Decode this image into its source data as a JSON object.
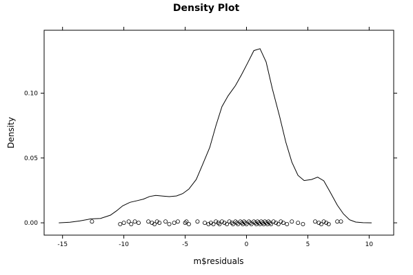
{
  "chart_data": {
    "type": "line",
    "title": "Density Plot",
    "xlabel": "m$residuals",
    "ylabel": "Density",
    "xlim": [
      -16.5,
      12.0
    ],
    "ylim": [
      -0.0095,
      0.1485
    ],
    "x_ticks": [
      -15,
      -10,
      -5,
      0,
      5,
      10
    ],
    "x_tick_labels": [
      "-15",
      "-10",
      "-5",
      "0",
      "5",
      "10"
    ],
    "y_ticks": [
      0.0,
      0.05,
      0.1
    ],
    "y_tick_labels": [
      "0.00",
      "0.05",
      "0.10"
    ],
    "grid": false,
    "legend": "none",
    "series": [
      {
        "style": "line",
        "x": [
          -15.3,
          -14.4,
          -13.6,
          -12.7,
          -11.9,
          -11.1,
          -10.6,
          -10.1,
          -9.5,
          -8.9,
          -8.4,
          -7.9,
          -7.4,
          -6.8,
          -6.3,
          -5.7,
          -5.2,
          -4.7,
          -4.1,
          -3.6,
          -3.0,
          -2.5,
          -2.0,
          -1.5,
          -0.9,
          -0.4,
          0.1,
          0.6,
          1.1,
          1.6,
          2.1,
          2.7,
          3.2,
          3.7,
          4.2,
          4.7,
          5.3,
          5.8,
          6.3,
          6.8,
          7.4,
          7.9,
          8.4,
          8.9,
          9.5,
          10.2
        ],
        "y": [
          0.0,
          0.0004,
          0.0014,
          0.003,
          0.0034,
          0.0059,
          0.0092,
          0.0131,
          0.0158,
          0.0171,
          0.0183,
          0.0203,
          0.0211,
          0.0206,
          0.0202,
          0.0207,
          0.0225,
          0.026,
          0.0334,
          0.0445,
          0.0581,
          0.0748,
          0.0896,
          0.0979,
          0.1058,
          0.1143,
          0.1234,
          0.1328,
          0.1343,
          0.124,
          0.1036,
          0.0819,
          0.0623,
          0.0468,
          0.0366,
          0.0326,
          0.0334,
          0.0352,
          0.0324,
          0.024,
          0.0136,
          0.0069,
          0.0023,
          0.0006,
          0.0001,
          0.0
        ]
      },
      {
        "style": "rug",
        "x": [
          -12.6,
          -10.3,
          -10.0,
          -9.6,
          -9.4,
          -9.1,
          -8.8,
          -8.0,
          -7.7,
          -7.5,
          -7.3,
          -7.1,
          -6.6,
          -6.3,
          -5.9,
          -5.6,
          -5.0,
          -4.9,
          -4.7,
          -4.0,
          -3.4,
          -3.1,
          -2.9,
          -2.7,
          -2.5,
          -2.3,
          -2.2,
          -2.0,
          -1.8,
          -1.6,
          -1.4,
          -1.2,
          -1.1,
          -0.9,
          -0.8,
          -0.7,
          -0.5,
          -0.4,
          -0.3,
          -0.2,
          -0.1,
          0.0,
          0.2,
          0.3,
          0.4,
          0.6,
          0.7,
          0.8,
          0.9,
          1.0,
          1.1,
          1.2,
          1.3,
          1.4,
          1.5,
          1.6,
          1.7,
          1.8,
          1.9,
          2.0,
          2.2,
          2.4,
          2.6,
          2.8,
          3.0,
          3.3,
          3.7,
          4.2,
          4.6,
          5.6,
          5.9,
          6.1,
          6.3,
          6.5,
          6.7,
          7.4,
          7.7
        ],
        "y": [
          0.001,
          -0.001,
          0.0,
          0.001,
          -0.001,
          0.001,
          0.0,
          0.001,
          0.0,
          -0.001,
          0.001,
          0.0,
          0.001,
          -0.001,
          0.0,
          0.001,
          0.0,
          0.001,
          -0.001,
          0.001,
          0.0,
          -0.001,
          0.0,
          -0.001,
          0.001,
          0.0,
          -0.001,
          0.001,
          0.0,
          -0.001,
          0.001,
          0.0,
          -0.001,
          0.001,
          0.0,
          -0.001,
          0.001,
          0.0,
          -0.001,
          0.001,
          0.0,
          -0.001,
          0.001,
          0.0,
          -0.001,
          0.001,
          0.0,
          -0.001,
          0.001,
          0.0,
          -0.001,
          0.001,
          0.0,
          -0.001,
          0.001,
          0.0,
          -0.001,
          0.001,
          0.0,
          -0.001,
          0.001,
          0.0,
          -0.001,
          0.001,
          0.0,
          -0.001,
          0.001,
          0.0,
          -0.001,
          0.001,
          0.0,
          -0.001,
          0.001,
          0.0,
          -0.001,
          0.001,
          0.001
        ]
      }
    ]
  }
}
